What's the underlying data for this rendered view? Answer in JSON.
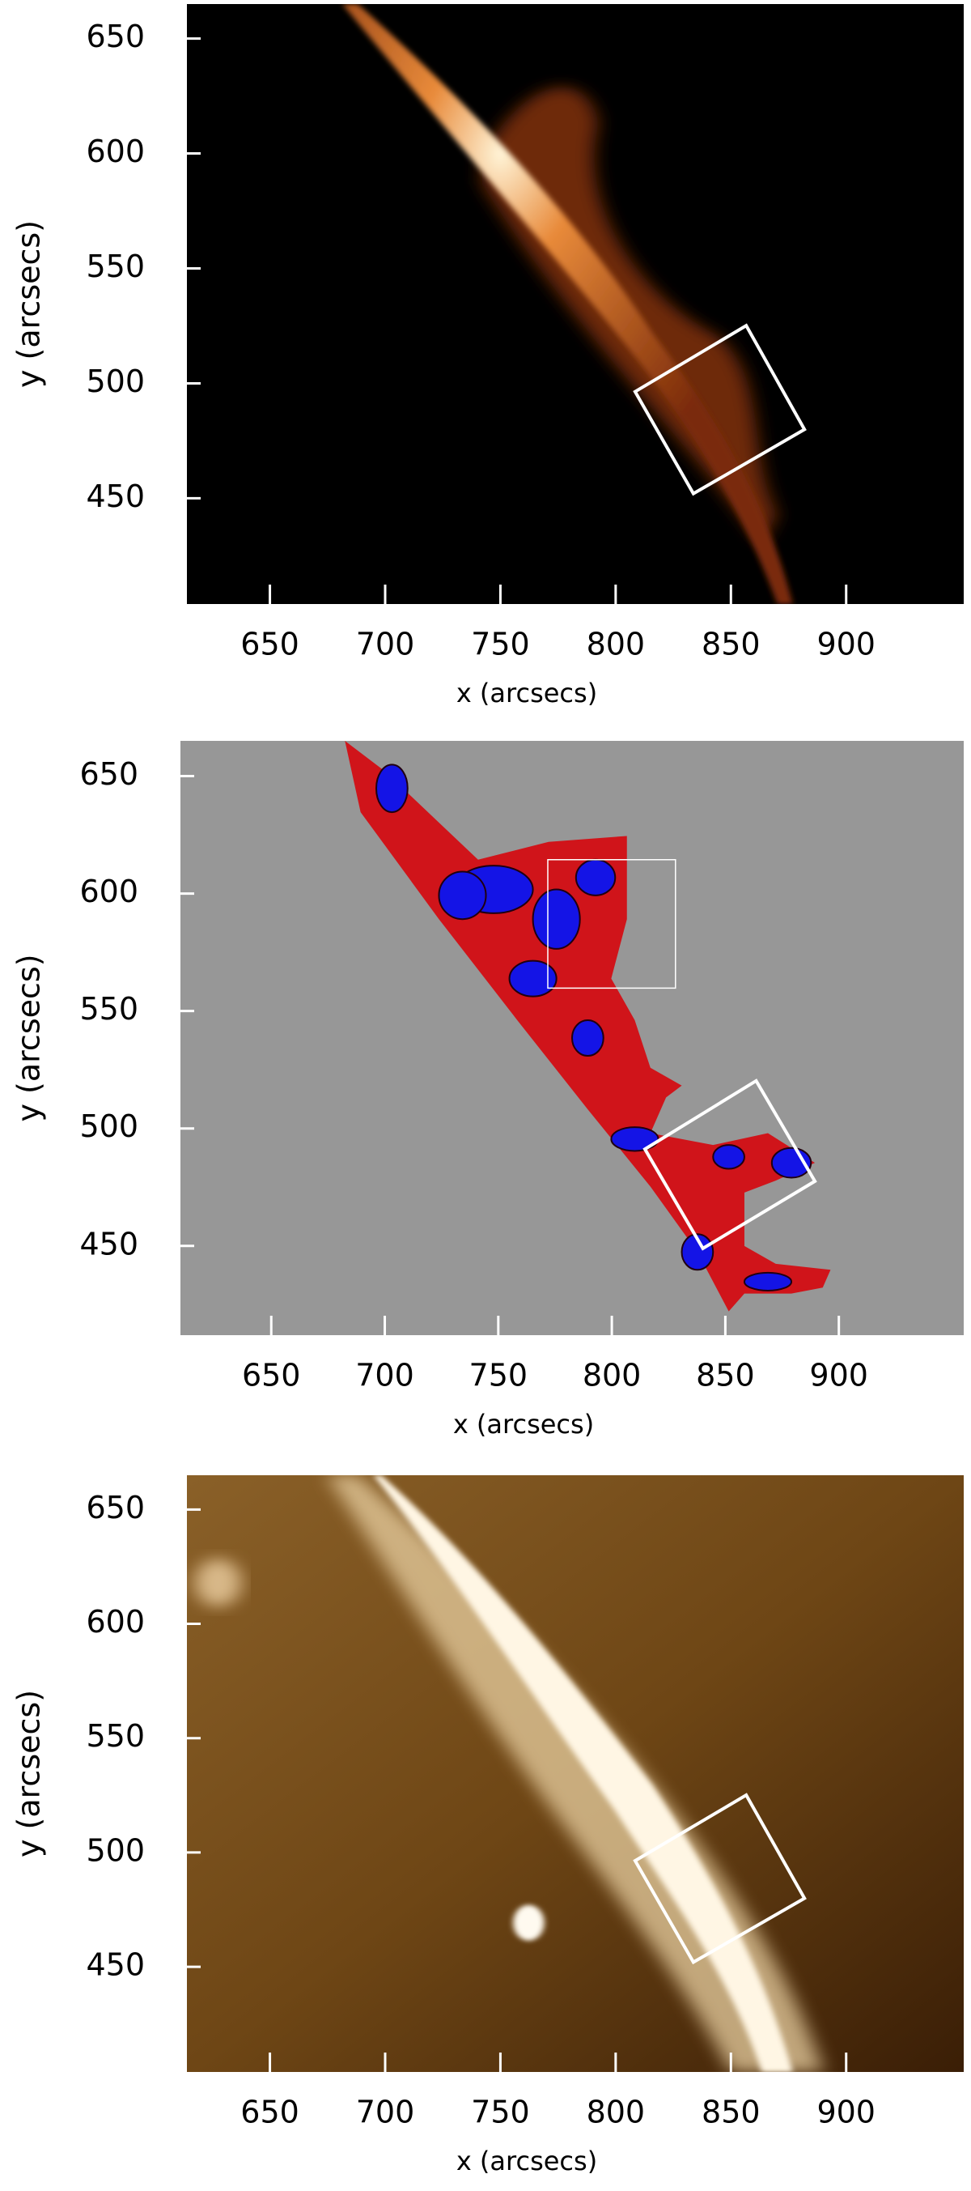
{
  "chart_data": [
    {
      "type": "image",
      "xlabel": "x (arcsecs)",
      "ylabel": "y (arcsecs)",
      "xlim": [
        614,
        951
      ],
      "ylim": [
        404,
        665
      ],
      "xticks": [
        650,
        700,
        750,
        800,
        850,
        900
      ],
      "yticks": [
        450,
        500,
        550,
        600,
        650
      ]
    },
    {
      "type": "image",
      "xlabel": "x (arcsecs)",
      "ylabel": "y (arcsecs)",
      "xlim": [
        610,
        955
      ],
      "ylim": [
        412,
        665
      ],
      "xticks": [
        650,
        700,
        750,
        800,
        850,
        900
      ],
      "yticks": [
        450,
        500,
        550,
        600,
        650
      ]
    },
    {
      "type": "image",
      "xlabel": "x (arcsecs)",
      "ylabel": "y (arcsecs)",
      "xlim": [
        614,
        951
      ],
      "ylim": [
        404,
        665
      ],
      "xticks": [
        650,
        700,
        750,
        800,
        850,
        900
      ],
      "yticks": [
        450,
        500,
        550,
        600,
        650
      ]
    }
  ]
}
